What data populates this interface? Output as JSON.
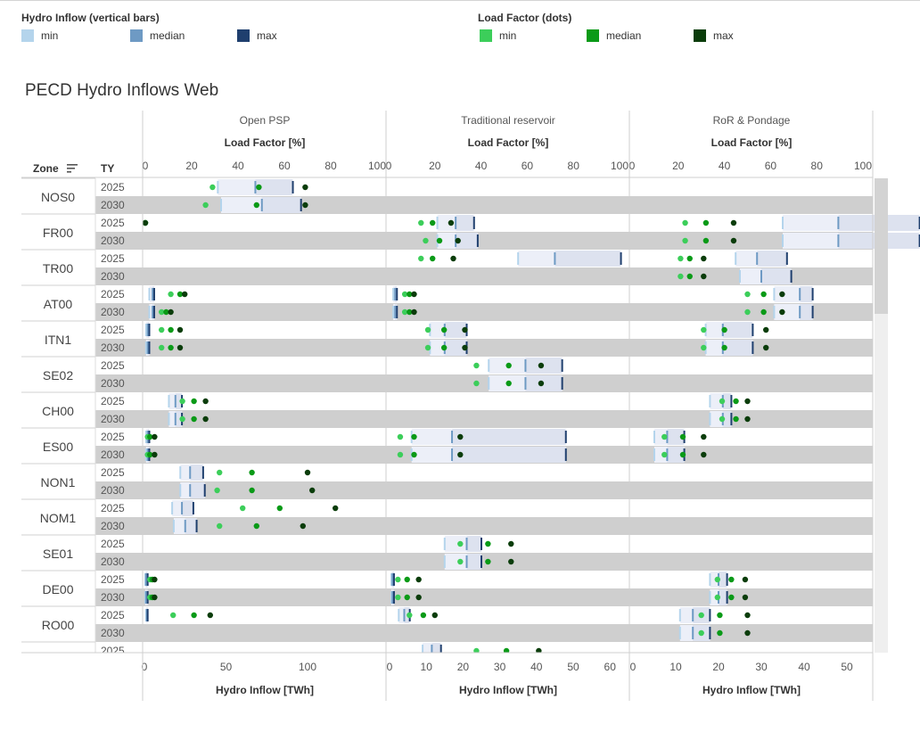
{
  "legend": {
    "inflow_title": "Hydro Inflow (vertical bars)",
    "inflow_items": [
      {
        "label": "min",
        "color": "#b4d4ec"
      },
      {
        "label": "median",
        "color": "#6e9ac4"
      },
      {
        "label": "max",
        "color": "#1f3f6e"
      }
    ],
    "load_title": "Load Factor (dots)",
    "load_items": [
      {
        "label": "min",
        "color": "#3cce5a"
      },
      {
        "label": "median",
        "color": "#0a9a17"
      },
      {
        "label": "max",
        "color": "#0b3d0b"
      }
    ]
  },
  "title": "PECD Hydro Inflows Web",
  "headers": {
    "zone": "Zone",
    "ty": "TY",
    "load_factor_axis": "Load Factor [%]",
    "inflow_axis": "Hydro Inflow [TWh]"
  },
  "chart_data": {
    "type": "bar",
    "panels": [
      {
        "name": "Open PSP",
        "lf_ticks": [
          "0",
          "20",
          "40",
          "60",
          "80",
          "100"
        ],
        "inflow_ticks": [
          0,
          50,
          100
        ],
        "inflow_max": 140
      },
      {
        "name": "Traditional reservoir",
        "lf_ticks": [
          "0",
          "20",
          "40",
          "60",
          "80",
          "100"
        ],
        "inflow_ticks": [
          0,
          10,
          20,
          30,
          40,
          50,
          60
        ],
        "inflow_max": 66
      },
      {
        "name": "RoR & Pondage",
        "lf_ticks": [
          "0",
          "20",
          "40",
          "60",
          "80",
          "100"
        ],
        "inflow_ticks": [
          0,
          10,
          20,
          30,
          40,
          50
        ],
        "inflow_max": 56
      }
    ],
    "zones": [
      {
        "zone": "NOS0",
        "rows": [
          {
            "ty": "2025",
            "cells": [
              {
                "inflow": [
                  45,
                  68,
                  91
                ],
                "lf": [
                  29,
                  49,
                  69
                ]
              },
              null,
              null
            ]
          },
          {
            "ty": "2030",
            "cells": [
              {
                "inflow": [
                  47,
                  72,
                  96
                ],
                "lf": [
                  26,
                  48,
                  69
                ]
              },
              null,
              null
            ]
          }
        ]
      },
      {
        "zone": "FR00",
        "rows": [
          {
            "ty": "2025",
            "cells": [
              {
                "inflow": null,
                "lf": [
                  0,
                  0,
                  0
                ]
              },
              {
                "inflow": [
                  13,
                  18,
                  23
                ],
                "lf": [
                  14,
                  19,
                  27
                ]
              },
              {
                "inflow": [
                  35,
                  48,
                  67
                ],
                "lf": [
                  23,
                  32,
                  44
                ]
              }
            ]
          },
          {
            "ty": "2030",
            "cells": [
              null,
              {
                "inflow": [
                  13,
                  18,
                  24
                ],
                "lf": [
                  16,
                  22,
                  30
                ]
              },
              {
                "inflow": [
                  35,
                  48,
                  67
                ],
                "lf": [
                  23,
                  32,
                  44
                ]
              }
            ]
          }
        ]
      },
      {
        "zone": "TR00",
        "rows": [
          {
            "ty": "2025",
            "cells": [
              null,
              {
                "inflow": [
                  35,
                  45,
                  63
                ],
                "lf": [
                  14,
                  19,
                  28
                ]
              },
              {
                "inflow": [
                  24,
                  29,
                  36
                ],
                "lf": [
                  21,
                  25,
                  31
                ]
              }
            ]
          },
          {
            "ty": "2030",
            "cells": [
              null,
              null,
              {
                "inflow": [
                  25,
                  30,
                  37
                ],
                "lf": [
                  21,
                  25,
                  31
                ]
              }
            ]
          }
        ]
      },
      {
        "zone": "AT00",
        "rows": [
          {
            "ty": "2025",
            "cells": [
              {
                "inflow": [
                  3,
                  5,
                  6
                ],
                "lf": [
                  11,
                  15,
                  17
                ]
              },
              {
                "inflow": [
                  1,
                  1.5,
                  2
                ],
                "lf": [
                  7,
                  9,
                  11
                ]
              },
              {
                "inflow": [
                  33,
                  39,
                  42
                ],
                "lf": [
                  50,
                  57,
                  65
                ]
              }
            ]
          },
          {
            "ty": "2030",
            "cells": [
              {
                "inflow": [
                  3,
                  5,
                  6
                ],
                "lf": [
                  7,
                  9,
                  11
                ]
              },
              {
                "inflow": [
                  1,
                  1.5,
                  2
                ],
                "lf": [
                  7,
                  9,
                  11
                ]
              },
              {
                "inflow": [
                  33,
                  39,
                  42
                ],
                "lf": [
                  50,
                  57,
                  65
                ]
              }
            ]
          }
        ]
      },
      {
        "zone": "ITN1",
        "rows": [
          {
            "ty": "2025",
            "cells": [
              {
                "inflow": [
                  1,
                  2,
                  3
                ],
                "lf": [
                  7,
                  11,
                  15
                ]
              },
              {
                "inflow": [
                  11,
                  15,
                  21
                ],
                "lf": [
                  17,
                  24,
                  33
                ]
              },
              {
                "inflow": [
                  17,
                  21,
                  28
                ],
                "lf": [
                  31,
                  40,
                  58
                ]
              }
            ]
          },
          {
            "ty": "2030",
            "cells": [
              {
                "inflow": [
                  1,
                  2,
                  3
                ],
                "lf": [
                  7,
                  11,
                  15
                ]
              },
              {
                "inflow": [
                  11,
                  15,
                  21
                ],
                "lf": [
                  17,
                  24,
                  33
                ]
              },
              {
                "inflow": [
                  17,
                  21,
                  28
                ],
                "lf": [
                  31,
                  40,
                  58
                ]
              }
            ]
          }
        ]
      },
      {
        "zone": "SE02",
        "rows": [
          {
            "ty": "2025",
            "cells": [
              null,
              {
                "inflow": [
                  27,
                  37,
                  47
                ],
                "lf": [
                  38,
                  52,
                  66
                ]
              },
              null
            ]
          },
          {
            "ty": "2030",
            "cells": [
              null,
              {
                "inflow": [
                  27,
                  37,
                  47
                ],
                "lf": [
                  38,
                  52,
                  66
                ]
              },
              null
            ]
          }
        ]
      },
      {
        "zone": "CH00",
        "rows": [
          {
            "ty": "2025",
            "cells": [
              {
                "inflow": [
                  15,
                  19,
                  23
                ],
                "lf": [
                  16,
                  21,
                  26
                ]
              },
              null,
              {
                "inflow": [
                  18,
                  21,
                  23
                ],
                "lf": [
                  39,
                  45,
                  50
                ]
              }
            ]
          },
          {
            "ty": "2030",
            "cells": [
              {
                "inflow": [
                  15,
                  19,
                  23
                ],
                "lf": [
                  16,
                  21,
                  26
                ]
              },
              null,
              {
                "inflow": [
                  18,
                  21,
                  23
                ],
                "lf": [
                  39,
                  45,
                  50
                ]
              }
            ]
          }
        ]
      },
      {
        "zone": "ES00",
        "rows": [
          {
            "ty": "2025",
            "cells": [
              {
                "inflow": [
                  1,
                  2,
                  3
                ],
                "lf": [
                  1,
                  2,
                  4
                ]
              },
              {
                "inflow": [
                  6,
                  17,
                  48
                ],
                "lf": [
                  5,
                  11,
                  31
                ]
              },
              {
                "inflow": [
                  5,
                  8,
                  12
                ],
                "lf": [
                  14,
                  22,
                  31
                ]
              }
            ]
          },
          {
            "ty": "2030",
            "cells": [
              {
                "inflow": [
                  1,
                  2,
                  3
                ],
                "lf": [
                  1,
                  2,
                  4
                ]
              },
              {
                "inflow": [
                  6,
                  17,
                  48
                ],
                "lf": [
                  5,
                  11,
                  31
                ]
              },
              {
                "inflow": [
                  5,
                  8,
                  12
                ],
                "lf": [
                  14,
                  22,
                  31
                ]
              }
            ]
          }
        ]
      },
      {
        "zone": "NON1",
        "rows": [
          {
            "ty": "2025",
            "cells": [
              {
                "inflow": [
                  22,
                  28,
                  36
                ],
                "lf": [
                  32,
                  46,
                  70
                ]
              },
              null,
              null
            ]
          },
          {
            "ty": "2030",
            "cells": [
              {
                "inflow": [
                  22,
                  28,
                  37
                ],
                "lf": [
                  31,
                  46,
                  72
                ]
              },
              null,
              null
            ]
          }
        ]
      },
      {
        "zone": "NOM1",
        "rows": [
          {
            "ty": "2025",
            "cells": [
              {
                "inflow": [
                  17,
                  23,
                  30
                ],
                "lf": [
                  42,
                  58,
                  82
                ]
              },
              null,
              null
            ]
          },
          {
            "ty": "2030",
            "cells": [
              {
                "inflow": [
                  18,
                  25,
                  32
                ],
                "lf": [
                  32,
                  48,
                  68
                ]
              },
              null,
              null
            ]
          }
        ]
      },
      {
        "zone": "SE01",
        "rows": [
          {
            "ty": "2025",
            "cells": [
              null,
              {
                "inflow": [
                  15,
                  21,
                  25
                ],
                "lf": [
                  31,
                  43,
                  53
                ]
              },
              null
            ]
          },
          {
            "ty": "2030",
            "cells": [
              null,
              {
                "inflow": [
                  15,
                  21,
                  25
                ],
                "lf": [
                  31,
                  43,
                  53
                ]
              },
              null
            ]
          }
        ]
      },
      {
        "zone": "DE00",
        "rows": [
          {
            "ty": "2025",
            "cells": [
              {
                "inflow": [
                  0.5,
                  1,
                  2
                ],
                "lf": [
                  2,
                  3,
                  4
                ]
              },
              {
                "inflow": [
                  0.5,
                  0.8,
                  1.2
                ],
                "lf": [
                  4,
                  8,
                  13
                ]
              },
              {
                "inflow": [
                  18,
                  20,
                  22
                ],
                "lf": [
                  37,
                  43,
                  49
                ]
              }
            ]
          },
          {
            "ty": "2030",
            "cells": [
              {
                "inflow": [
                  0.5,
                  1,
                  2
                ],
                "lf": [
                  2,
                  3,
                  4
                ]
              },
              {
                "inflow": [
                  0.5,
                  0.8,
                  1.2
                ],
                "lf": [
                  4,
                  8,
                  13
                ]
              },
              {
                "inflow": [
                  18,
                  20,
                  22
                ],
                "lf": [
                  37,
                  43,
                  49
                ]
              }
            ]
          }
        ]
      },
      {
        "zone": "RO00",
        "rows": [
          {
            "ty": "2025",
            "cells": [
              {
                "inflow": [
                  1,
                  1.5,
                  2
                ],
                "lf": [
                  12,
                  21,
                  28
                ]
              },
              {
                "inflow": [
                  2.5,
                  4,
                  5.5
                ],
                "lf": [
                  9,
                  15,
                  20
                ]
              },
              {
                "inflow": [
                  11,
                  14,
                  18
                ],
                "lf": [
                  30,
                  38,
                  50
                ]
              }
            ]
          },
          {
            "ty": "2030",
            "cells": [
              null,
              null,
              {
                "inflow": [
                  11,
                  14,
                  18
                ],
                "lf": [
                  30,
                  38,
                  50
                ]
              }
            ]
          }
        ]
      },
      {
        "zone": "",
        "rows": [
          {
            "ty": "2025",
            "cells": [
              null,
              {
                "inflow": [
                  9,
                  11.5,
                  14
                ],
                "lf": [
                  38,
                  51,
                  65
                ]
              },
              null
            ]
          }
        ]
      }
    ]
  }
}
